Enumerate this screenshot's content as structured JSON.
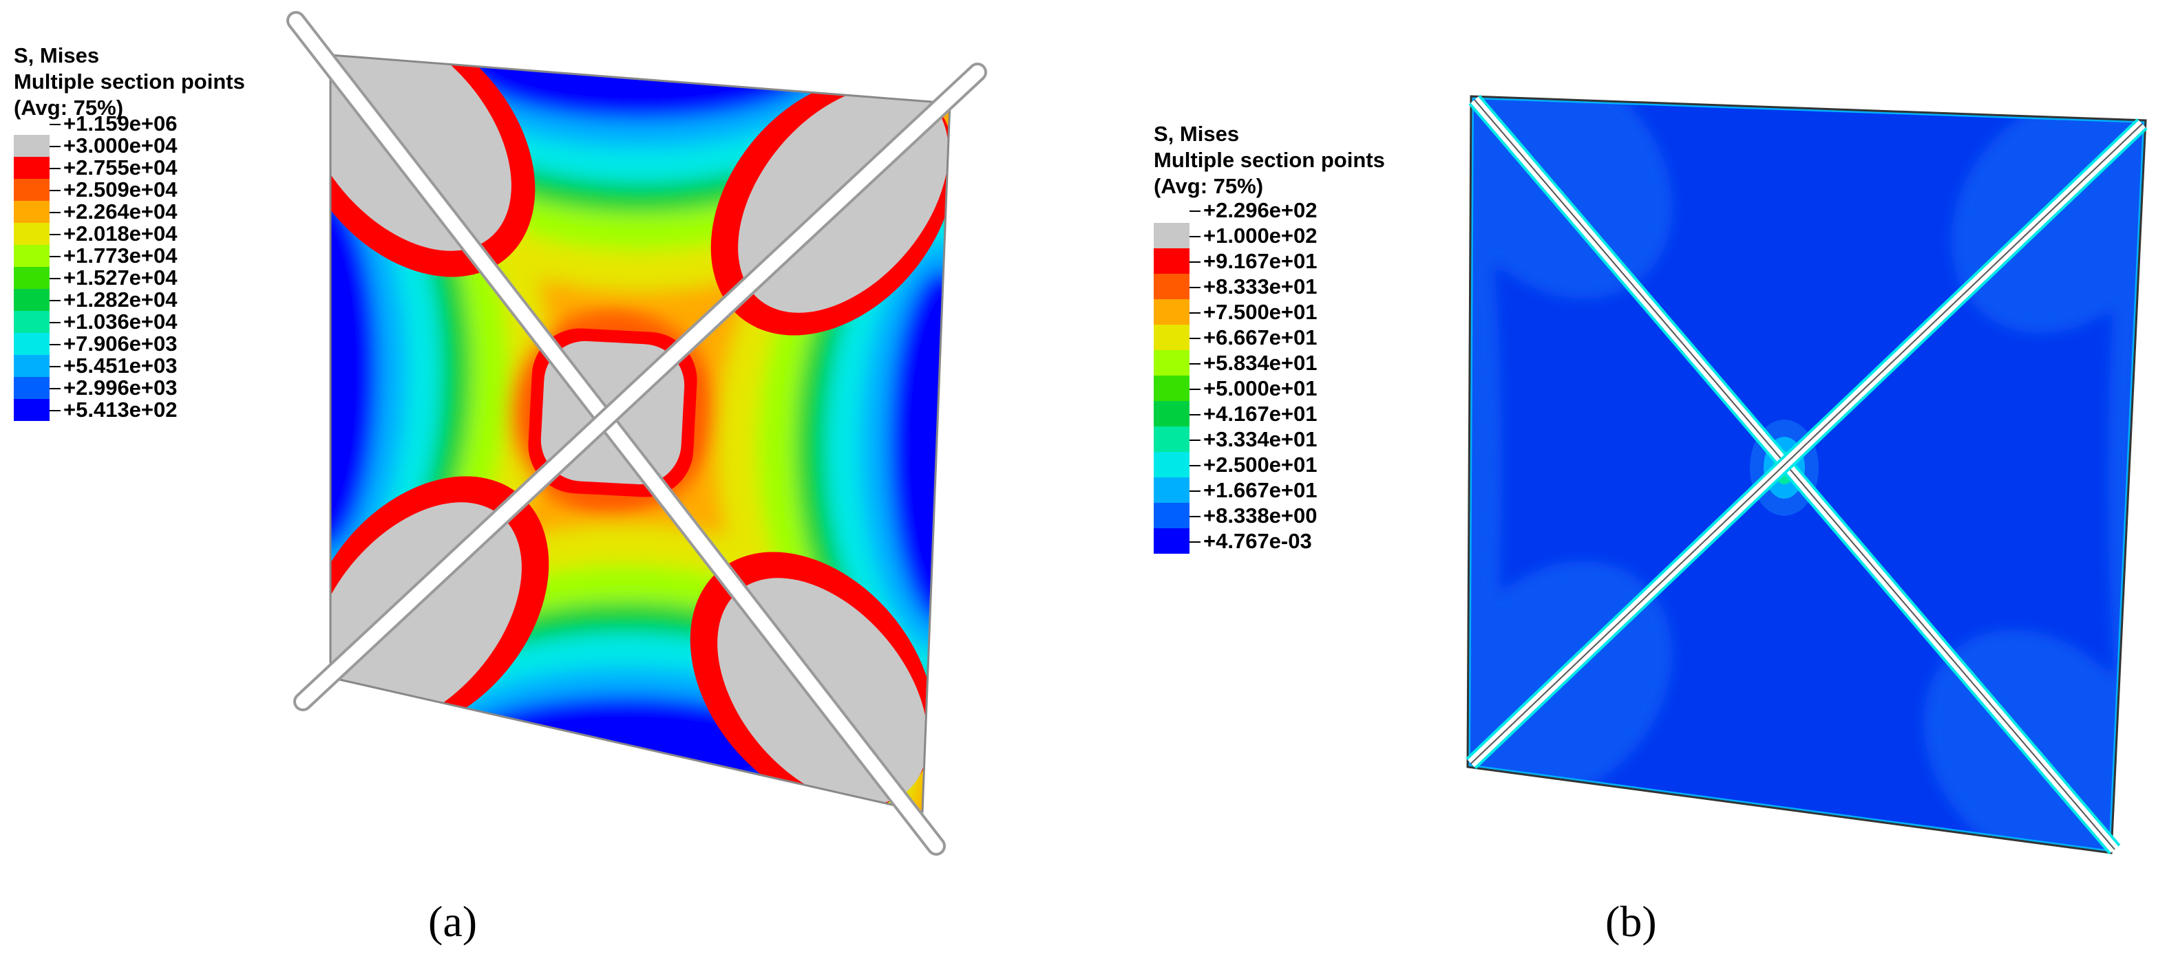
{
  "colors": {
    "scale": [
      "#c8c8c8",
      "#ff0000",
      "#ff5a00",
      "#ffaa00",
      "#e6e600",
      "#a0ff00",
      "#38e000",
      "#00d040",
      "#00e8a0",
      "#00e8e8",
      "#00b0ff",
      "#0060ff",
      "#0000ff"
    ],
    "plate_fill": "#0038f0",
    "slit": "#ffffff"
  },
  "panels": {
    "a": {
      "legend": {
        "title": "S, Mises",
        "subtitle": "Multiple section points",
        "avg": "(Avg: 75%)",
        "values": [
          "+1.159e+06",
          "+3.000e+04",
          "+2.755e+04",
          "+2.509e+04",
          "+2.264e+04",
          "+2.018e+04",
          "+1.773e+04",
          "+1.527e+04",
          "+1.282e+04",
          "+1.036e+04",
          "+7.906e+03",
          "+5.451e+03",
          "+2.996e+03",
          "+5.413e+02"
        ]
      },
      "caption": "(a)"
    },
    "b": {
      "legend": {
        "title": "S, Mises",
        "subtitle": "Multiple section points",
        "avg": "(Avg: 75%)",
        "values": [
          "+2.296e+02",
          "+1.000e+02",
          "+9.167e+01",
          "+8.333e+01",
          "+7.500e+01",
          "+6.667e+01",
          "+5.834e+01",
          "+5.000e+01",
          "+4.167e+01",
          "+3.334e+01",
          "+2.500e+01",
          "+1.667e+01",
          "+8.338e+00",
          "+4.767e-03"
        ]
      },
      "caption": "(b)"
    }
  }
}
